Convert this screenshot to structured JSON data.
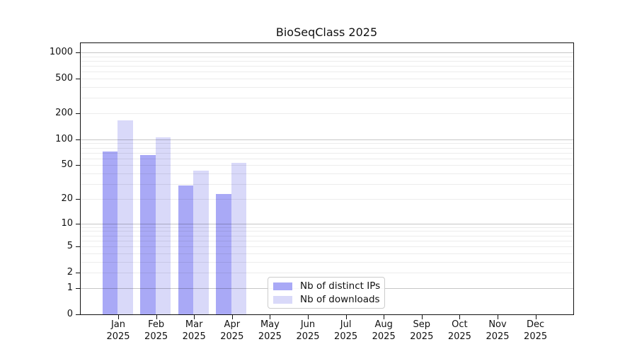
{
  "title": "BioSeqClass 2025",
  "chart_data": {
    "type": "bar",
    "title": "BioSeqClass 2025",
    "categories": [
      "Jan 2025",
      "Feb 2025",
      "Mar 2025",
      "Apr 2025",
      "May 2025",
      "Jun 2025",
      "Jul 2025",
      "Aug 2025",
      "Sep 2025",
      "Oct 2025",
      "Nov 2025",
      "Dec 2025"
    ],
    "x_tick_months": [
      "Jan",
      "Feb",
      "Mar",
      "Apr",
      "May",
      "Jun",
      "Jul",
      "Aug",
      "Sep",
      "Oct",
      "Nov",
      "Dec"
    ],
    "x_tick_year": "2025",
    "series": [
      {
        "name": "Nb of distinct IPs",
        "color": "#a9a9f6",
        "values": [
          72,
          66,
          29,
          23,
          0,
          0,
          0,
          0,
          0,
          0,
          0,
          0
        ]
      },
      {
        "name": "Nb of downloads",
        "color": "#d9d9f9",
        "values": [
          165,
          105,
          43,
          53,
          0,
          0,
          0,
          0,
          0,
          0,
          0,
          0
        ]
      }
    ],
    "y_scale": "log10(v+1)",
    "y_ticks": [
      0,
      1,
      2,
      5,
      10,
      20,
      50,
      100,
      200,
      500,
      1000
    ],
    "y_minor_gridlines": [
      2,
      3,
      4,
      5,
      6,
      7,
      8,
      9,
      20,
      30,
      40,
      50,
      60,
      70,
      80,
      90,
      200,
      300,
      400,
      500,
      600,
      700,
      800,
      900
    ],
    "y_major_gridlines": [
      1,
      10,
      100,
      1000
    ],
    "ylim": [
      0,
      1280
    ],
    "grid": "on",
    "legend_position": "lower-center-inside",
    "colors": {
      "axis": "#111111",
      "major_grid": "#c6c6c6",
      "minor_grid": "#ececec",
      "background": "#ffffff"
    }
  }
}
